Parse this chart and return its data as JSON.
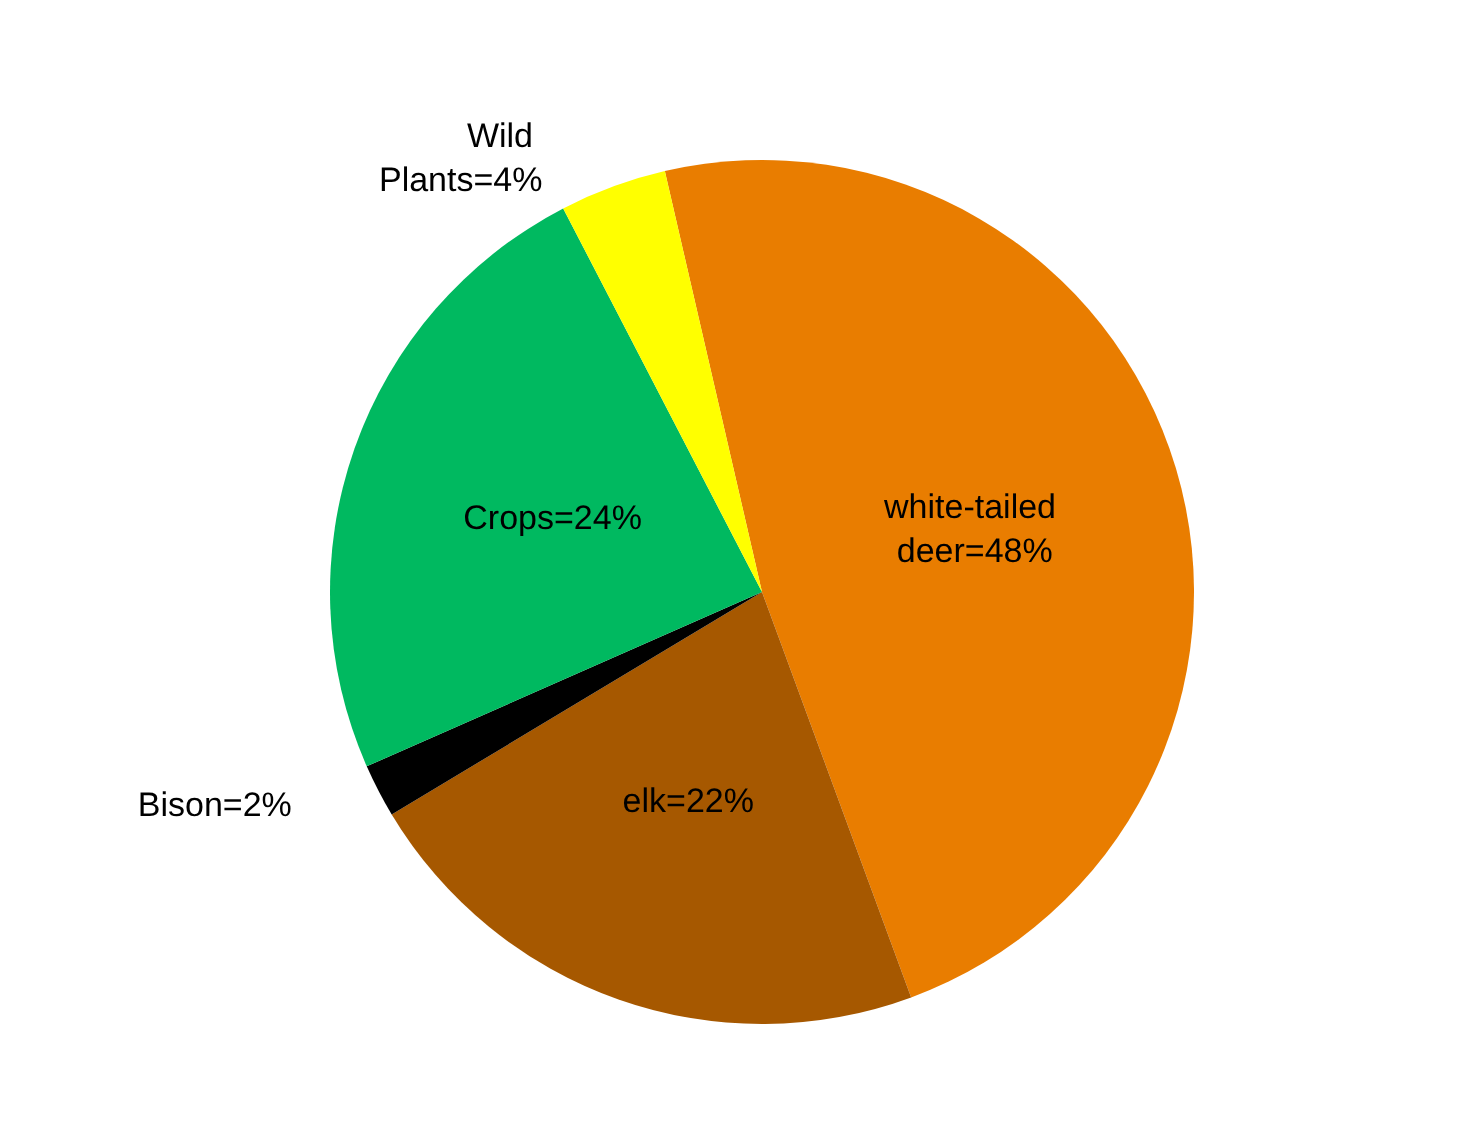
{
  "chart_data": {
    "type": "pie",
    "categories": [
      "white-tailed deer",
      "elk",
      "Bison",
      "Crops",
      "Wild Plants"
    ],
    "values": [
      48,
      22,
      2,
      24,
      4
    ],
    "colors": [
      "#e97d00",
      "#a65800",
      "#000000",
      "#00b960",
      "#ffff00"
    ],
    "value_labels": [
      "=48%",
      "=22%",
      "=2%",
      "=24%",
      "=4%"
    ],
    "legend": false
  }
}
